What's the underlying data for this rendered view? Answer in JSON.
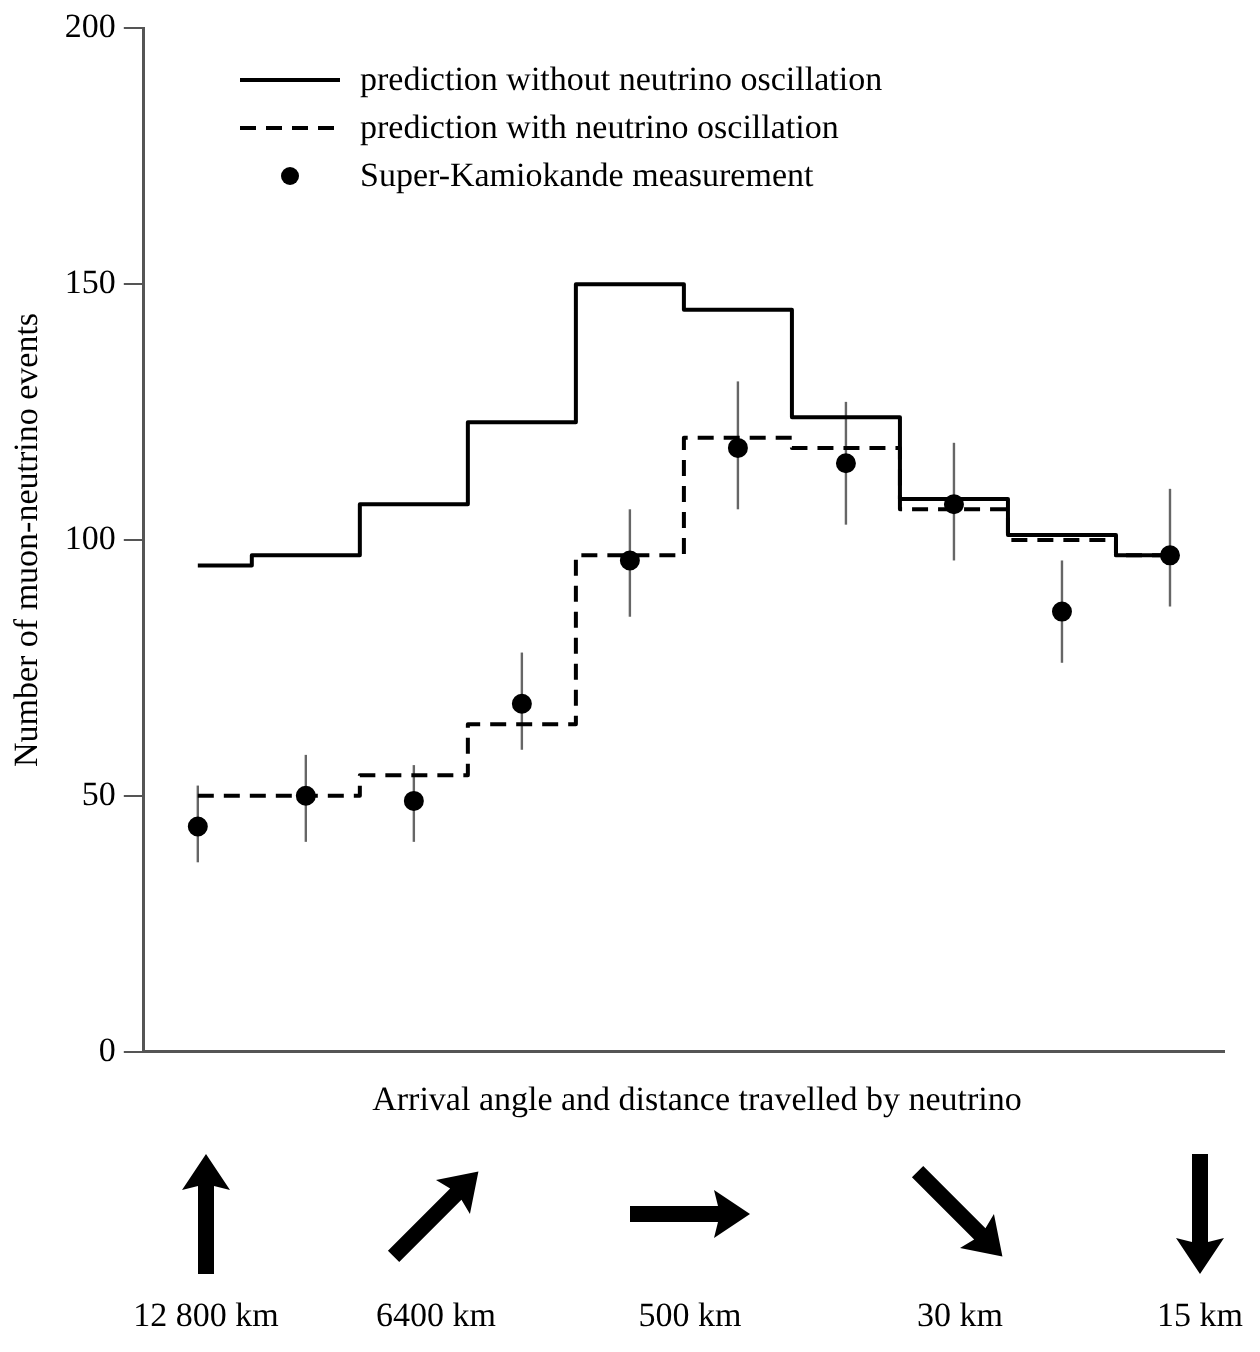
{
  "chart_data": {
    "type": "step",
    "xlabel": "Arrival angle and distance travelled by neutrino",
    "ylabel": "Number of muon-neutrino events",
    "categories": [
      null,
      null,
      null,
      null,
      null,
      null,
      null,
      null,
      null,
      null
    ],
    "ylim": [
      0,
      200
    ],
    "yticks": [
      0,
      50,
      100,
      150,
      200
    ],
    "grid": false,
    "legend": "top left",
    "tick_labels": "y",
    "series": [
      {
        "name": "prediction without neutrino oscillation",
        "color": "#000000",
        "line_style": "solid",
        "values": [
          95,
          97,
          107,
          123,
          150,
          145,
          124,
          108,
          101,
          97
        ]
      },
      {
        "name": "prediction with neutrino oscillation",
        "color": "#000000",
        "line_style": "dashed",
        "values": [
          50,
          50,
          54,
          64,
          97,
          120,
          118,
          106,
          100,
          97
        ]
      },
      {
        "name": "Super-Kamiokande measurement",
        "type": "scatter",
        "color": "#000000",
        "marker": "circle",
        "values": [
          44,
          50,
          49,
          68,
          96,
          118,
          115,
          107,
          86,
          97
        ],
        "errors": [
          [
            37,
            52
          ],
          [
            41,
            58
          ],
          [
            41,
            56
          ],
          [
            59,
            78
          ],
          [
            85,
            106
          ],
          [
            106,
            131
          ],
          [
            103,
            127
          ],
          [
            96,
            119
          ],
          [
            76,
            96
          ],
          [
            87,
            110
          ]
        ]
      }
    ],
    "annotations": [
      "12 800 km",
      "6400 km",
      "500 km",
      "30 km",
      "15 km"
    ]
  }
}
